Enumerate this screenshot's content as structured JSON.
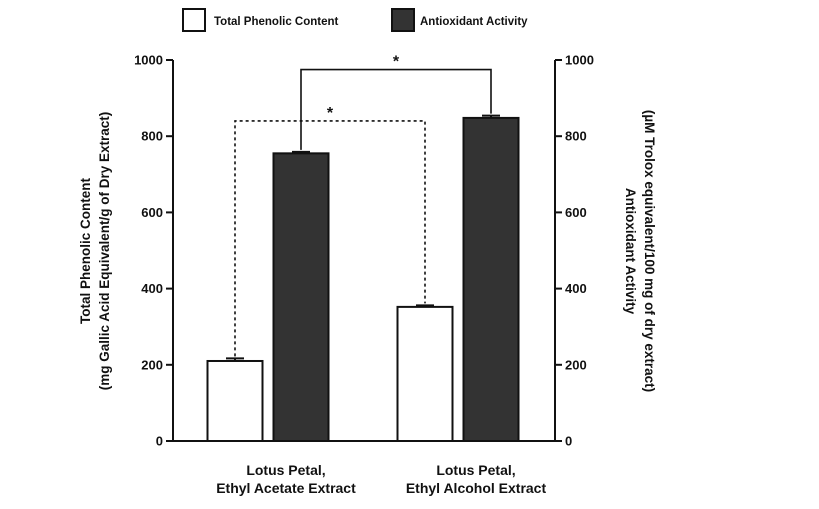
{
  "chart_data": {
    "type": "bar",
    "categories": [
      "Lotus Petal, Ethyl Acetate Extract",
      "Lotus Petal, Ethyl Alcohol Extract"
    ],
    "category_lines": [
      [
        "Lotus Petal,",
        "Ethyl Acetate Extract"
      ],
      [
        "Lotus Petal,",
        "Ethyl Alcohol Extract"
      ]
    ],
    "series": [
      {
        "name": "Total Phenolic Content",
        "axis": "left",
        "color": "#ffffff",
        "values": [
          210,
          352
        ],
        "errors": [
          7,
          4
        ]
      },
      {
        "name": "Antioxidant Activity",
        "axis": "right",
        "color": "#333333",
        "values": [
          755,
          848
        ],
        "errors": [
          4,
          6
        ]
      }
    ],
    "y_left": {
      "label_lines": [
        "Total Phenolic Content",
        "(mg Gallic Acid Equivalent/g of Dry Extract)"
      ],
      "ylim": [
        0,
        1000
      ],
      "ticks": [
        "0",
        "200",
        "400",
        "600",
        "800",
        "1000"
      ]
    },
    "y_right": {
      "label_lines": [
        "Antioxidant Activity",
        "(µM Trolox equivalent/100 mg of dry extract)"
      ],
      "ylim": [
        0,
        1000
      ],
      "ticks": [
        "0",
        "200",
        "400",
        "600",
        "800",
        "1000"
      ]
    },
    "significance": [
      {
        "series": "Antioxidant Activity",
        "style": "solid",
        "label": "*",
        "level": 975
      },
      {
        "series": "Total Phenolic Content",
        "style": "dashed",
        "label": "*",
        "level": 840
      }
    ],
    "legend_position": "top",
    "grid": false
  }
}
